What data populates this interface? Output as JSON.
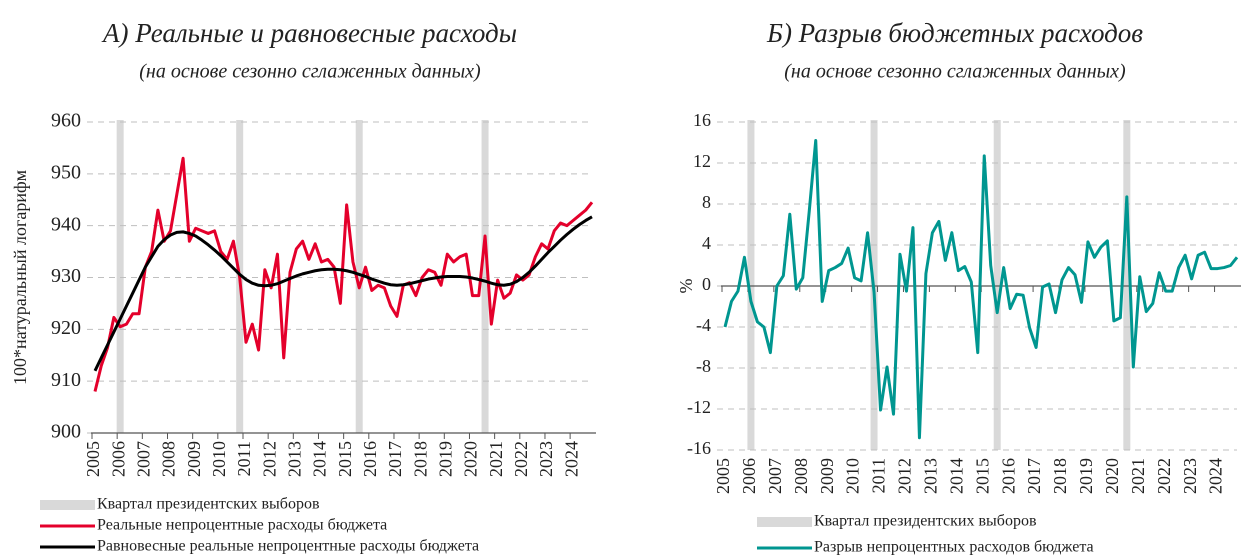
{
  "chart_data": [
    {
      "type": "line",
      "title": "А) Реальные и равновесные расходы",
      "subtitle": "(на основе сезонно сглаженных данных)",
      "y_label": "100*натуральный логарифм",
      "categories": [
        "2005",
        null,
        null,
        null,
        "2006",
        null,
        null,
        null,
        "2007",
        null,
        null,
        null,
        "2008",
        null,
        null,
        null,
        "2009",
        null,
        null,
        null,
        "2010",
        null,
        null,
        null,
        "2011",
        null,
        null,
        null,
        "2012",
        null,
        null,
        null,
        "2013",
        null,
        null,
        null,
        "2014",
        null,
        null,
        null,
        "2015",
        null,
        null,
        null,
        "2016",
        null,
        null,
        null,
        "2017",
        null,
        null,
        null,
        "2018",
        null,
        null,
        null,
        "2019",
        null,
        null,
        null,
        "2020",
        null,
        null,
        null,
        "2021",
        null,
        null,
        null,
        "2022",
        null,
        null,
        null,
        "2023",
        null,
        null,
        null,
        "2024",
        null,
        null,
        null
      ],
      "ylim": [
        900,
        960
      ],
      "yticks": [
        900,
        910,
        920,
        930,
        940,
        950,
        960
      ],
      "grid": true,
      "highlight": {
        "name": "Квартал президентских выборов",
        "color": "#d9d9d9",
        "indices": [
          4,
          23,
          42,
          62
        ]
      },
      "series": [
        {
          "name": "Реальные непроцентные расходы бюджета",
          "color": "#e4002b",
          "values": [
            908,
            913,
            916.5,
            922.3,
            920.5,
            921,
            923,
            923,
            932,
            935,
            943,
            937,
            939,
            946,
            953,
            937,
            939.5,
            939,
            938.5,
            939,
            935,
            933.5,
            937,
            930,
            917.5,
            921,
            916,
            931.5,
            928,
            934.5,
            914.5,
            931,
            935.5,
            937,
            933.5,
            936.5,
            933,
            933.5,
            932,
            925,
            944,
            933,
            928,
            932,
            927.5,
            928.5,
            928,
            924.5,
            922.5,
            928.5,
            929,
            926.5,
            930,
            931.5,
            931,
            928.5,
            934.5,
            933,
            934,
            934.5,
            926.5,
            926.5,
            938,
            921,
            929.5,
            926,
            927,
            930.5,
            929.5,
            930.5,
            934,
            936.5,
            935.5,
            939,
            940.5,
            940,
            941,
            942,
            943,
            944.5
          ]
        },
        {
          "name": "Равновесные реальные непроцентные расходы бюджета",
          "color": "#000000",
          "values": [
            912,
            914.5,
            917,
            919.5,
            922,
            924.5,
            927,
            929.5,
            932,
            934,
            936,
            937.3,
            938.2,
            938.7,
            938.8,
            938.5,
            938,
            937.2,
            936.3,
            935.3,
            934.2,
            933,
            931.8,
            930.6,
            929.6,
            928.9,
            928.5,
            928.4,
            928.5,
            928.8,
            929.3,
            929.8,
            930.3,
            930.7,
            931,
            931.3,
            931.5,
            931.6,
            931.6,
            931.5,
            931.3,
            931,
            930.6,
            930.2,
            929.7,
            929.3,
            928.9,
            928.6,
            928.5,
            928.6,
            928.8,
            929.1,
            929.4,
            929.7,
            929.9,
            930.1,
            930.2,
            930.2,
            930.2,
            930.1,
            929.9,
            929.6,
            929.3,
            928.9,
            928.6,
            928.5,
            928.7,
            929.2,
            930,
            931,
            932.2,
            933.5,
            934.8,
            936,
            937.2,
            938.3,
            939.3,
            940.2,
            941,
            941.7
          ]
        }
      ]
    },
    {
      "type": "line",
      "title": "Б) Разрыв бюджетных расходов",
      "subtitle": "(на основе сезонно сглаженных данных)",
      "y_label": "%",
      "categories": [
        "2005",
        null,
        null,
        null,
        "2006",
        null,
        null,
        null,
        "2007",
        null,
        null,
        null,
        "2008",
        null,
        null,
        null,
        "2009",
        null,
        null,
        null,
        "2010",
        null,
        null,
        null,
        "2011",
        null,
        null,
        null,
        "2012",
        null,
        null,
        null,
        "2013",
        null,
        null,
        null,
        "2014",
        null,
        null,
        null,
        "2015",
        null,
        null,
        null,
        "2016",
        null,
        null,
        null,
        "2017",
        null,
        null,
        null,
        "2018",
        null,
        null,
        null,
        "2019",
        null,
        null,
        null,
        "2020",
        null,
        null,
        null,
        "2021",
        null,
        null,
        null,
        "2022",
        null,
        null,
        null,
        "2023",
        null,
        null,
        null,
        "2024",
        null,
        null,
        null
      ],
      "ylim": [
        -16,
        16
      ],
      "yticks": [
        -16,
        -12,
        -8,
        -4,
        0,
        4,
        8,
        12,
        16
      ],
      "grid": true,
      "highlight": {
        "name": "Квартал президентских выборов",
        "color": "#d9d9d9",
        "indices": [
          4,
          23,
          42,
          62
        ]
      },
      "series": [
        {
          "name": "Разрыв непроцентных расходов бюджета",
          "color": "#009690",
          "values": [
            -4,
            -1.5,
            -0.5,
            2.8,
            -1.5,
            -3.5,
            -4,
            -6.5,
            0,
            1,
            7,
            -0.3,
            0.8,
            7.3,
            14.2,
            -1.5,
            1.5,
            1.8,
            2.2,
            3.7,
            0.8,
            0.5,
            5.2,
            -0.6,
            -12.1,
            -7.9,
            -12.5,
            3.1,
            -0.5,
            5.7,
            -14.8,
            1.2,
            5.2,
            6.3,
            2.5,
            5.2,
            1.5,
            1.9,
            0.4,
            -6.5,
            12.7,
            2,
            -2.6,
            1.8,
            -2.2,
            -0.8,
            -0.9,
            -4.1,
            -6,
            -0.1,
            0.2,
            -2.6,
            0.6,
            1.8,
            1.1,
            -1.6,
            4.3,
            2.8,
            3.8,
            4.4,
            -3.4,
            -3.1,
            8.7,
            -7.9,
            0.9,
            -2.5,
            -1.7,
            1.3,
            -0.5,
            -0.5,
            1.8,
            3,
            0.7,
            3,
            3.3,
            1.7,
            1.7,
            1.8,
            2,
            2.8
          ]
        }
      ]
    }
  ]
}
